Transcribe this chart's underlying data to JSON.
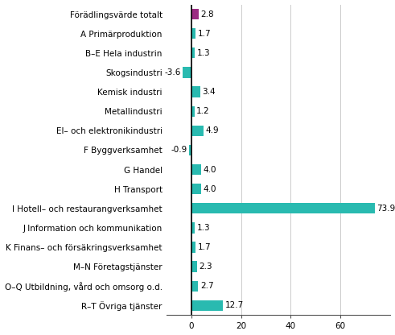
{
  "categories": [
    "Förädlingsvärde totalt",
    "A Primärproduktion",
    "B–E Hela industrin",
    "Skogsindustri",
    "Kemisk industri",
    "Metallindustri",
    "El– och elektronikindustri",
    "F Byggverksamhet",
    "G Handel",
    "H Transport",
    "I Hotell– och restaurangverksamhet",
    "J Information och kommunikation",
    "K Finans– och försäkringsverksamhet",
    "M–N Företagstjänster",
    "O–Q Utbildning, vård och omsorg o.d.",
    "R–T Övriga tjänster"
  ],
  "values": [
    2.8,
    1.7,
    1.3,
    -3.6,
    3.4,
    1.2,
    4.9,
    -0.9,
    4.0,
    4.0,
    73.9,
    1.3,
    1.7,
    2.3,
    2.7,
    12.7
  ],
  "colors": [
    "#9b2b82",
    "#29bab0",
    "#29bab0",
    "#29bab0",
    "#29bab0",
    "#29bab0",
    "#29bab0",
    "#29bab0",
    "#29bab0",
    "#29bab0",
    "#29bab0",
    "#29bab0",
    "#29bab0",
    "#29bab0",
    "#29bab0",
    "#29bab0"
  ],
  "xlim": [
    -10,
    80
  ],
  "xticks": [
    0,
    20,
    40,
    60
  ],
  "label_fontsize": 7.5,
  "value_fontsize": 7.5,
  "background_color": "#ffffff",
  "bar_height": 0.55
}
